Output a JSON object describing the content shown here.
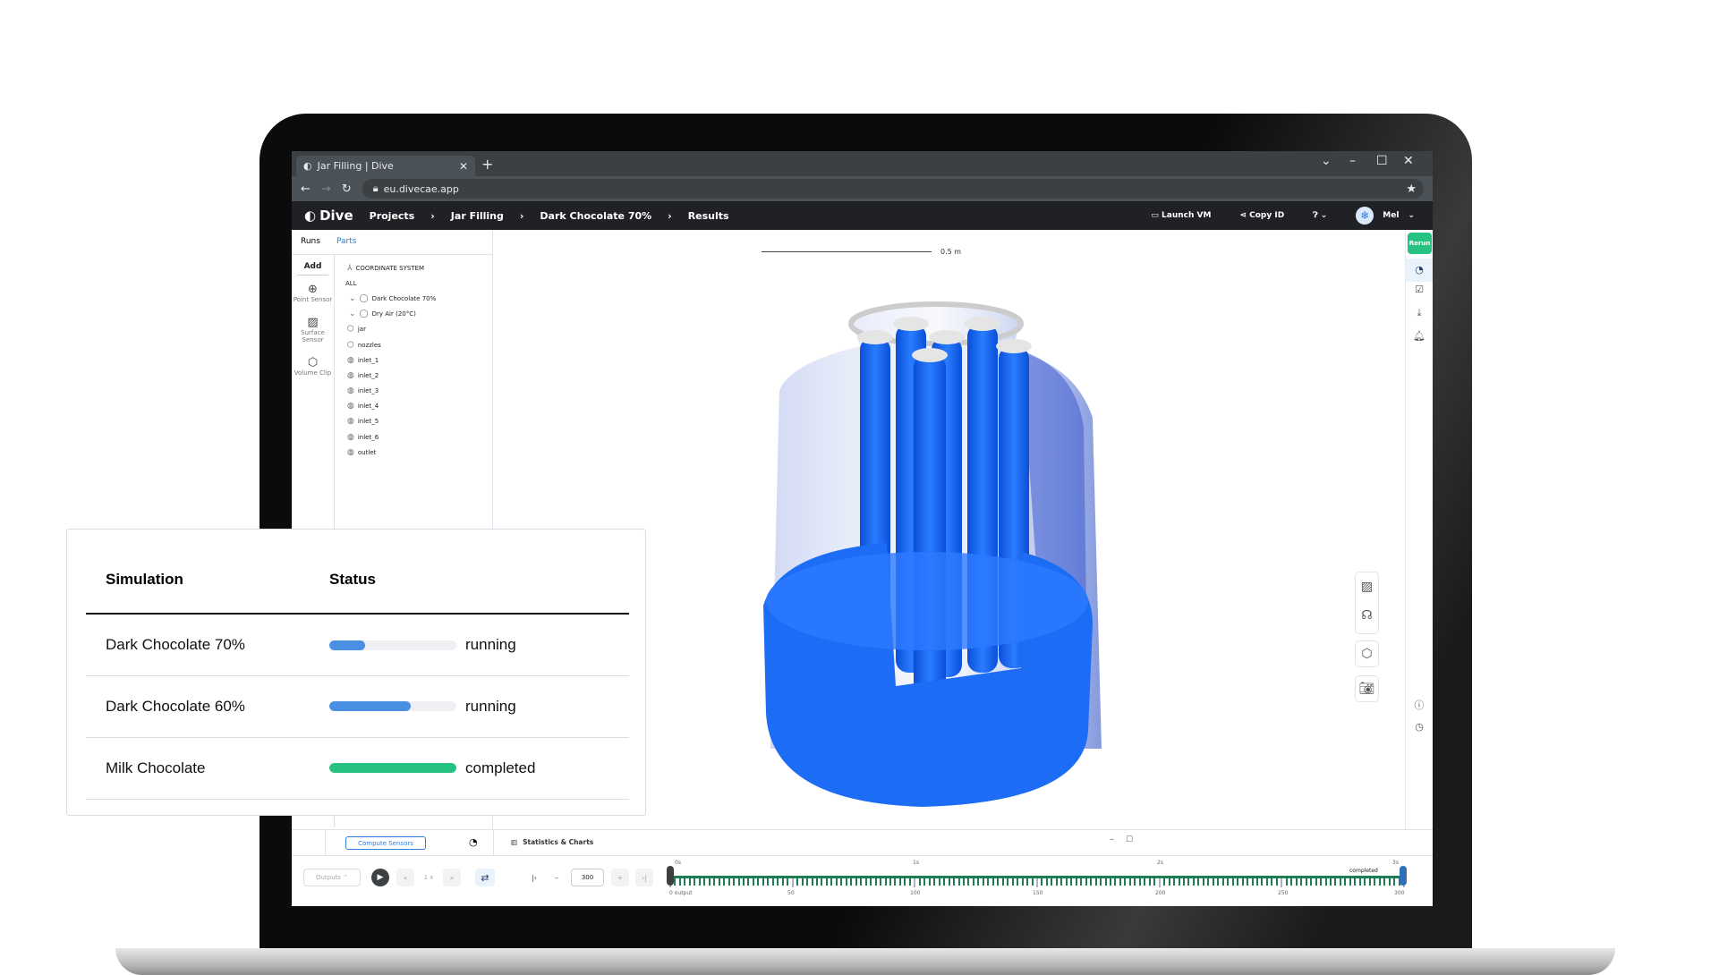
{
  "browser": {
    "tab_title": "Jar Filling | Dive",
    "url": "eu.divecae.app"
  },
  "nav": {
    "logo": "Dive",
    "breadcrumbs": [
      "Projects",
      "Jar Filling",
      "Dark Chocolate 70%",
      "Results"
    ],
    "launch_vm": "Launch VM",
    "copy_id": "Copy ID",
    "user": "Mel"
  },
  "left_panel": {
    "tabs": [
      "Runs",
      "Parts"
    ],
    "active_tab": "Parts",
    "add": "Add",
    "tools": [
      {
        "label": "Point Sensor",
        "icon": "point-sensor-icon"
      },
      {
        "label": "Surface Sensor",
        "icon": "surface-sensor-icon"
      },
      {
        "label": "Volume Clip",
        "icon": "volume-clip-icon"
      }
    ],
    "tree": {
      "coordinate_system": "COORDINATE SYSTEM",
      "all": "ALL",
      "materials": [
        "Dark Chocolate 70%",
        "Dry Air (20°C)"
      ],
      "bodies": [
        "jar",
        "nozzles"
      ],
      "surfaces": [
        "inlet_1",
        "inlet_2",
        "inlet_3",
        "inlet_4",
        "inlet_5",
        "inlet_6",
        "outlet"
      ]
    }
  },
  "viewport": {
    "scale_label": "0.5 m"
  },
  "right_toolbar": {
    "rerun": "Rerun"
  },
  "bottom": {
    "compute_sensors": "Compute Sensors",
    "stats_charts": "Statistics & Charts",
    "outputs": "Outputs",
    "speed": "1 x",
    "frame": "300",
    "timeline": {
      "time_labels": [
        "0s",
        "1s",
        "2s",
        "3s"
      ],
      "output_labels": [
        "0 output",
        "50",
        "100",
        "150",
        "200",
        "250",
        "300"
      ],
      "status": "completed"
    }
  },
  "table": {
    "headers": [
      "Simulation",
      "Status"
    ],
    "rows": [
      {
        "name": "Dark Chocolate 70%",
        "progress": 0.28,
        "status": "running",
        "color": "#4a90e2"
      },
      {
        "name": "Dark Chocolate 60%",
        "progress": 0.64,
        "status": "running",
        "color": "#4a90e2"
      },
      {
        "name": "Milk Chocolate",
        "progress": 1.0,
        "status": "completed",
        "color": "#26c281"
      }
    ]
  },
  "colors": {
    "accent": "#2f7de1",
    "success": "#26c281",
    "chocolate_render": "#1560f0"
  }
}
